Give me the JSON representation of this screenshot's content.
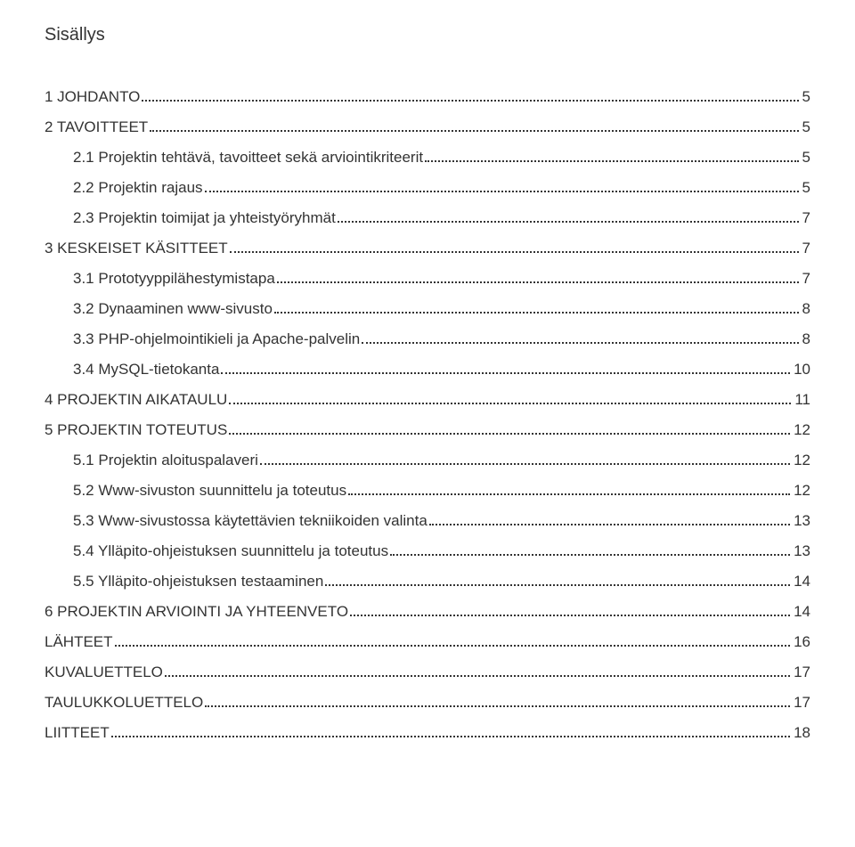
{
  "title": "Sisällys",
  "entries": [
    {
      "level": 0,
      "label": "1 JOHDANTO",
      "page": "5"
    },
    {
      "level": 0,
      "label": "2 TAVOITTEET",
      "page": "5"
    },
    {
      "level": 1,
      "label": "2.1 Projektin tehtävä, tavoitteet sekä arviointikriteerit",
      "page": "5"
    },
    {
      "level": 1,
      "label": "2.2 Projektin rajaus",
      "page": "5"
    },
    {
      "level": 1,
      "label": "2.3 Projektin toimijat ja yhteistyöryhmät",
      "page": "7"
    },
    {
      "level": 0,
      "label": "3 KESKEISET KÄSITTEET",
      "page": "7"
    },
    {
      "level": 1,
      "label": "3.1 Prototyyppilähestymistapa",
      "page": "7"
    },
    {
      "level": 1,
      "label": "3.2 Dynaaminen www-sivusto",
      "page": "8"
    },
    {
      "level": 1,
      "label": "3.3 PHP-ohjelmointikieli ja Apache-palvelin",
      "page": "8"
    },
    {
      "level": 1,
      "label": "3.4 MySQL-tietokanta",
      "page": "10"
    },
    {
      "level": 0,
      "label": "4 PROJEKTIN AIKATAULU",
      "page": "11"
    },
    {
      "level": 0,
      "label": "5 PROJEKTIN TOTEUTUS",
      "page": "12"
    },
    {
      "level": 1,
      "label": "5.1 Projektin aloituspalaveri",
      "page": "12"
    },
    {
      "level": 1,
      "label": "5.2 Www-sivuston suunnittelu ja toteutus",
      "page": "12"
    },
    {
      "level": 1,
      "label": "5.3 Www-sivustossa käytettävien tekniikoiden valinta",
      "page": "13"
    },
    {
      "level": 1,
      "label": "5.4 Ylläpito-ohjeistuksen suunnittelu ja toteutus",
      "page": "13"
    },
    {
      "level": 1,
      "label": "5.5 Ylläpito-ohjeistuksen testaaminen",
      "page": "14"
    },
    {
      "level": 0,
      "label": "6 PROJEKTIN ARVIOINTI JA YHTEENVETO",
      "page": "14"
    },
    {
      "level": 0,
      "label": "LÄHTEET",
      "page": "16"
    },
    {
      "level": 0,
      "label": "KUVALUETTELO",
      "page": "17"
    },
    {
      "level": 0,
      "label": "TAULUKKOLUETTELO",
      "page": "17"
    },
    {
      "level": 0,
      "label": "LIITTEET",
      "page": "18"
    }
  ]
}
